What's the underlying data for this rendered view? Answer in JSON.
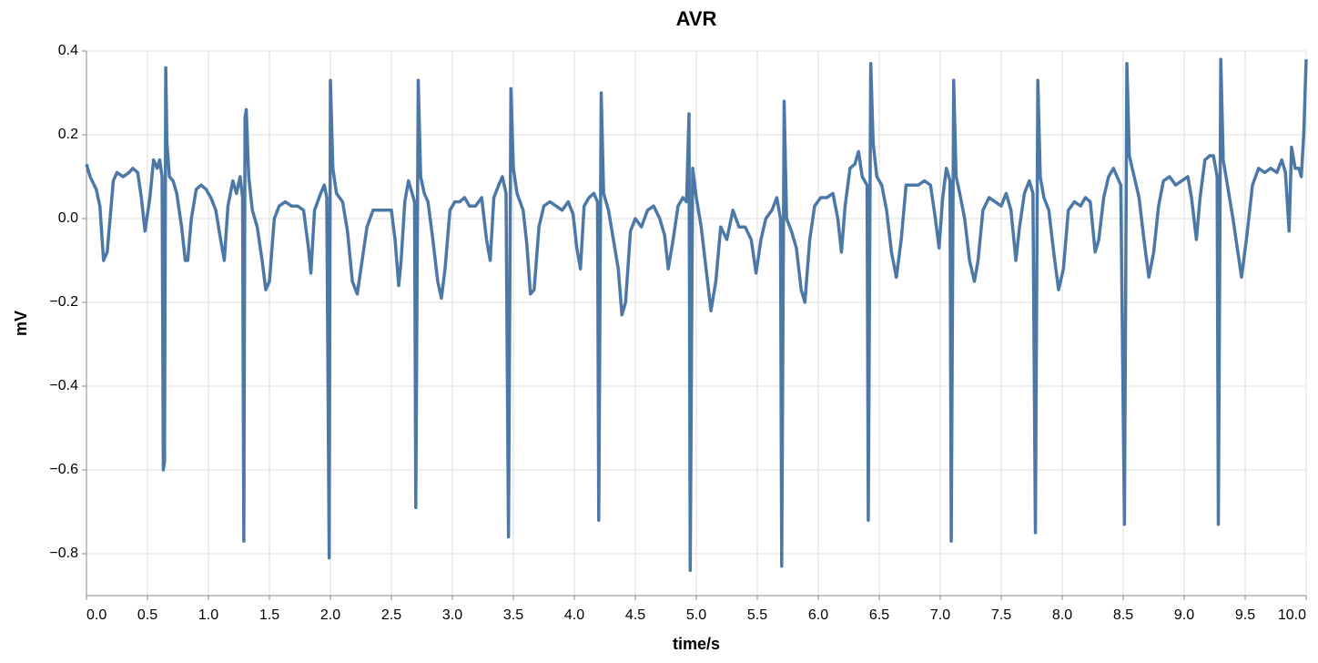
{
  "chart_data": {
    "type": "line",
    "title": "AVR",
    "x_label": "time/s",
    "y_label": "mV",
    "color": "#4c78a8",
    "grid": true,
    "xlim": [
      0,
      10
    ],
    "ylim": [
      -0.9,
      0.4
    ],
    "xticks": [
      {
        "value": 0,
        "label": "0.0"
      },
      0.5,
      {
        "value": 1,
        "label": "1.0"
      },
      1.5,
      {
        "value": 2,
        "label": "2.0"
      },
      2.5,
      {
        "value": 3,
        "label": "3.0"
      },
      3.5,
      {
        "value": 4,
        "label": "4.0"
      },
      4.5,
      {
        "value": 5,
        "label": "5.0"
      },
      5.5,
      {
        "value": 6,
        "label": "6.0"
      },
      6.5,
      {
        "value": 7,
        "label": "7.0"
      },
      7.5,
      {
        "value": 8,
        "label": "8.0"
      },
      8.5,
      {
        "value": 9,
        "label": "9.0"
      },
      9.5,
      {
        "value": 10,
        "label": "10.0"
      }
    ],
    "yticks": [
      {
        "value": -0.8,
        "label": "−0.8"
      },
      {
        "value": -0.6,
        "label": "−0.6"
      },
      {
        "value": -0.4,
        "label": "−0.4"
      },
      {
        "value": -0.2,
        "label": "−0.2"
      },
      {
        "value": 0,
        "label": "0.0"
      },
      0.2,
      0.4
    ],
    "x": [
      0.0,
      0.03,
      0.08,
      0.11,
      0.14,
      0.17,
      0.22,
      0.25,
      0.3,
      0.35,
      0.38,
      0.42,
      0.45,
      0.48,
      0.52,
      0.55,
      0.58,
      0.6,
      0.62,
      0.63,
      0.64,
      0.65,
      0.66,
      0.68,
      0.71,
      0.74,
      0.78,
      0.81,
      0.83,
      0.86,
      0.9,
      0.94,
      0.98,
      1.02,
      1.06,
      1.1,
      1.13,
      1.16,
      1.2,
      1.23,
      1.26,
      1.28,
      1.29,
      1.3,
      1.31,
      1.33,
      1.36,
      1.4,
      1.44,
      1.47,
      1.5,
      1.54,
      1.58,
      1.63,
      1.68,
      1.73,
      1.78,
      1.82,
      1.84,
      1.87,
      1.92,
      1.95,
      1.97,
      1.99,
      2.0,
      2.02,
      2.05,
      2.1,
      2.14,
      2.18,
      2.22,
      2.26,
      2.3,
      2.35,
      2.4,
      2.45,
      2.5,
      2.53,
      2.56,
      2.58,
      2.61,
      2.64,
      2.67,
      2.69,
      2.7,
      2.72,
      2.74,
      2.77,
      2.8,
      2.84,
      2.88,
      2.91,
      2.94,
      2.98,
      3.02,
      3.06,
      3.1,
      3.14,
      3.19,
      3.24,
      3.28,
      3.31,
      3.34,
      3.38,
      3.41,
      3.44,
      3.46,
      3.48,
      3.5,
      3.53,
      3.58,
      3.61,
      3.64,
      3.67,
      3.71,
      3.75,
      3.8,
      3.85,
      3.9,
      3.95,
      3.99,
      4.02,
      4.05,
      4.08,
      4.12,
      4.16,
      4.19,
      4.2,
      4.22,
      4.24,
      4.28,
      4.32,
      4.36,
      4.39,
      4.42,
      4.46,
      4.5,
      4.55,
      4.6,
      4.65,
      4.7,
      4.74,
      4.77,
      4.81,
      4.85,
      4.89,
      4.92,
      4.94,
      4.95,
      4.97,
      5.0,
      5.04,
      5.08,
      5.12,
      5.16,
      5.2,
      5.25,
      5.3,
      5.35,
      5.4,
      5.45,
      5.49,
      5.53,
      5.57,
      5.62,
      5.66,
      5.69,
      5.7,
      5.72,
      5.74,
      5.78,
      5.82,
      5.86,
      5.89,
      5.93,
      5.97,
      6.02,
      6.07,
      6.12,
      6.16,
      6.19,
      6.22,
      6.26,
      6.3,
      6.33,
      6.36,
      6.4,
      6.41,
      6.43,
      6.45,
      6.48,
      6.52,
      6.56,
      6.6,
      6.64,
      6.68,
      6.72,
      6.77,
      6.82,
      6.87,
      6.92,
      6.96,
      6.99,
      7.02,
      7.05,
      7.08,
      7.09,
      7.11,
      7.13,
      7.16,
      7.2,
      7.24,
      7.28,
      7.31,
      7.35,
      7.4,
      7.45,
      7.5,
      7.54,
      7.58,
      7.62,
      7.65,
      7.69,
      7.73,
      7.76,
      7.78,
      7.8,
      7.82,
      7.85,
      7.89,
      7.93,
      7.97,
      8.01,
      8.05,
      8.1,
      8.15,
      8.19,
      8.23,
      8.27,
      8.3,
      8.34,
      8.38,
      8.42,
      8.45,
      8.48,
      8.51,
      8.53,
      8.55,
      8.59,
      8.63,
      8.67,
      8.71,
      8.75,
      8.79,
      8.83,
      8.88,
      8.93,
      8.98,
      9.03,
      9.06,
      9.1,
      9.13,
      9.17,
      9.21,
      9.24,
      9.27,
      9.28,
      9.3,
      9.32,
      9.36,
      9.4,
      9.44,
      9.47,
      9.51,
      9.56,
      9.61,
      9.66,
      9.71,
      9.76,
      9.8,
      9.83,
      9.86,
      9.88,
      9.91,
      9.94,
      9.96,
      9.98,
      10.0
    ],
    "values": [
      0.13,
      0.1,
      0.07,
      0.03,
      -0.1,
      -0.08,
      0.09,
      0.11,
      0.1,
      0.11,
      0.12,
      0.11,
      0.05,
      -0.03,
      0.05,
      0.14,
      0.12,
      0.14,
      0.1,
      -0.6,
      -0.58,
      0.36,
      0.18,
      0.1,
      0.09,
      0.06,
      -0.02,
      -0.1,
      -0.1,
      0.0,
      0.07,
      0.08,
      0.07,
      0.05,
      0.02,
      -0.05,
      -0.1,
      0.03,
      0.09,
      0.06,
      0.1,
      0.05,
      -0.77,
      0.24,
      0.26,
      0.1,
      0.02,
      -0.02,
      -0.1,
      -0.17,
      -0.15,
      0.0,
      0.03,
      0.04,
      0.03,
      0.03,
      0.02,
      -0.07,
      -0.13,
      0.02,
      0.06,
      0.08,
      0.05,
      -0.81,
      0.33,
      0.12,
      0.06,
      0.04,
      -0.03,
      -0.15,
      -0.18,
      -0.1,
      -0.02,
      0.02,
      0.02,
      0.02,
      0.02,
      -0.05,
      -0.16,
      -0.1,
      0.04,
      0.09,
      0.06,
      0.04,
      -0.69,
      0.33,
      0.1,
      0.06,
      0.04,
      -0.05,
      -0.15,
      -0.19,
      -0.12,
      0.02,
      0.04,
      0.04,
      0.05,
      0.03,
      0.03,
      0.05,
      -0.05,
      -0.1,
      0.05,
      0.08,
      0.1,
      0.06,
      -0.76,
      0.31,
      0.12,
      0.06,
      0.02,
      -0.06,
      -0.18,
      -0.17,
      -0.02,
      0.03,
      0.04,
      0.03,
      0.02,
      0.04,
      0.01,
      -0.07,
      -0.12,
      0.03,
      0.05,
      0.06,
      0.04,
      -0.72,
      0.3,
      0.06,
      0.02,
      -0.05,
      -0.12,
      -0.23,
      -0.2,
      -0.03,
      0.0,
      -0.02,
      0.02,
      0.03,
      0.0,
      -0.04,
      -0.12,
      -0.05,
      0.03,
      0.05,
      0.04,
      0.25,
      -0.84,
      0.12,
      0.05,
      -0.02,
      -0.12,
      -0.22,
      -0.15,
      -0.02,
      -0.05,
      0.02,
      -0.02,
      -0.02,
      -0.05,
      -0.13,
      -0.05,
      0.0,
      0.02,
      0.05,
      0.0,
      -0.83,
      0.28,
      0.0,
      -0.03,
      -0.07,
      -0.17,
      -0.2,
      -0.05,
      0.03,
      0.05,
      0.05,
      0.06,
      0.0,
      -0.08,
      0.03,
      0.12,
      0.13,
      0.16,
      0.1,
      0.08,
      -0.72,
      0.37,
      0.18,
      0.1,
      0.08,
      0.02,
      -0.08,
      -0.14,
      -0.05,
      0.08,
      0.08,
      0.08,
      0.09,
      0.08,
      0.0,
      -0.07,
      0.05,
      0.12,
      0.09,
      -0.77,
      0.33,
      0.1,
      0.06,
      0.0,
      -0.1,
      -0.15,
      -0.1,
      0.02,
      0.05,
      0.04,
      0.03,
      0.06,
      0.02,
      -0.1,
      -0.02,
      0.06,
      0.09,
      0.06,
      -0.75,
      0.33,
      0.1,
      0.05,
      0.02,
      -0.08,
      -0.17,
      -0.12,
      0.02,
      0.04,
      0.03,
      0.05,
      0.04,
      -0.08,
      -0.05,
      0.05,
      0.1,
      0.12,
      0.1,
      0.08,
      -0.73,
      0.37,
      0.15,
      0.1,
      0.05,
      -0.05,
      -0.14,
      -0.08,
      0.03,
      0.09,
      0.1,
      0.08,
      0.09,
      0.1,
      0.05,
      -0.05,
      0.05,
      0.14,
      0.15,
      0.15,
      0.1,
      -0.73,
      0.38,
      0.14,
      0.07,
      0.0,
      -0.08,
      -0.14,
      -0.05,
      0.08,
      0.12,
      0.11,
      0.12,
      0.11,
      0.14,
      0.11,
      -0.03,
      0.17,
      0.12,
      0.12,
      0.1,
      0.2,
      0.38
    ]
  }
}
